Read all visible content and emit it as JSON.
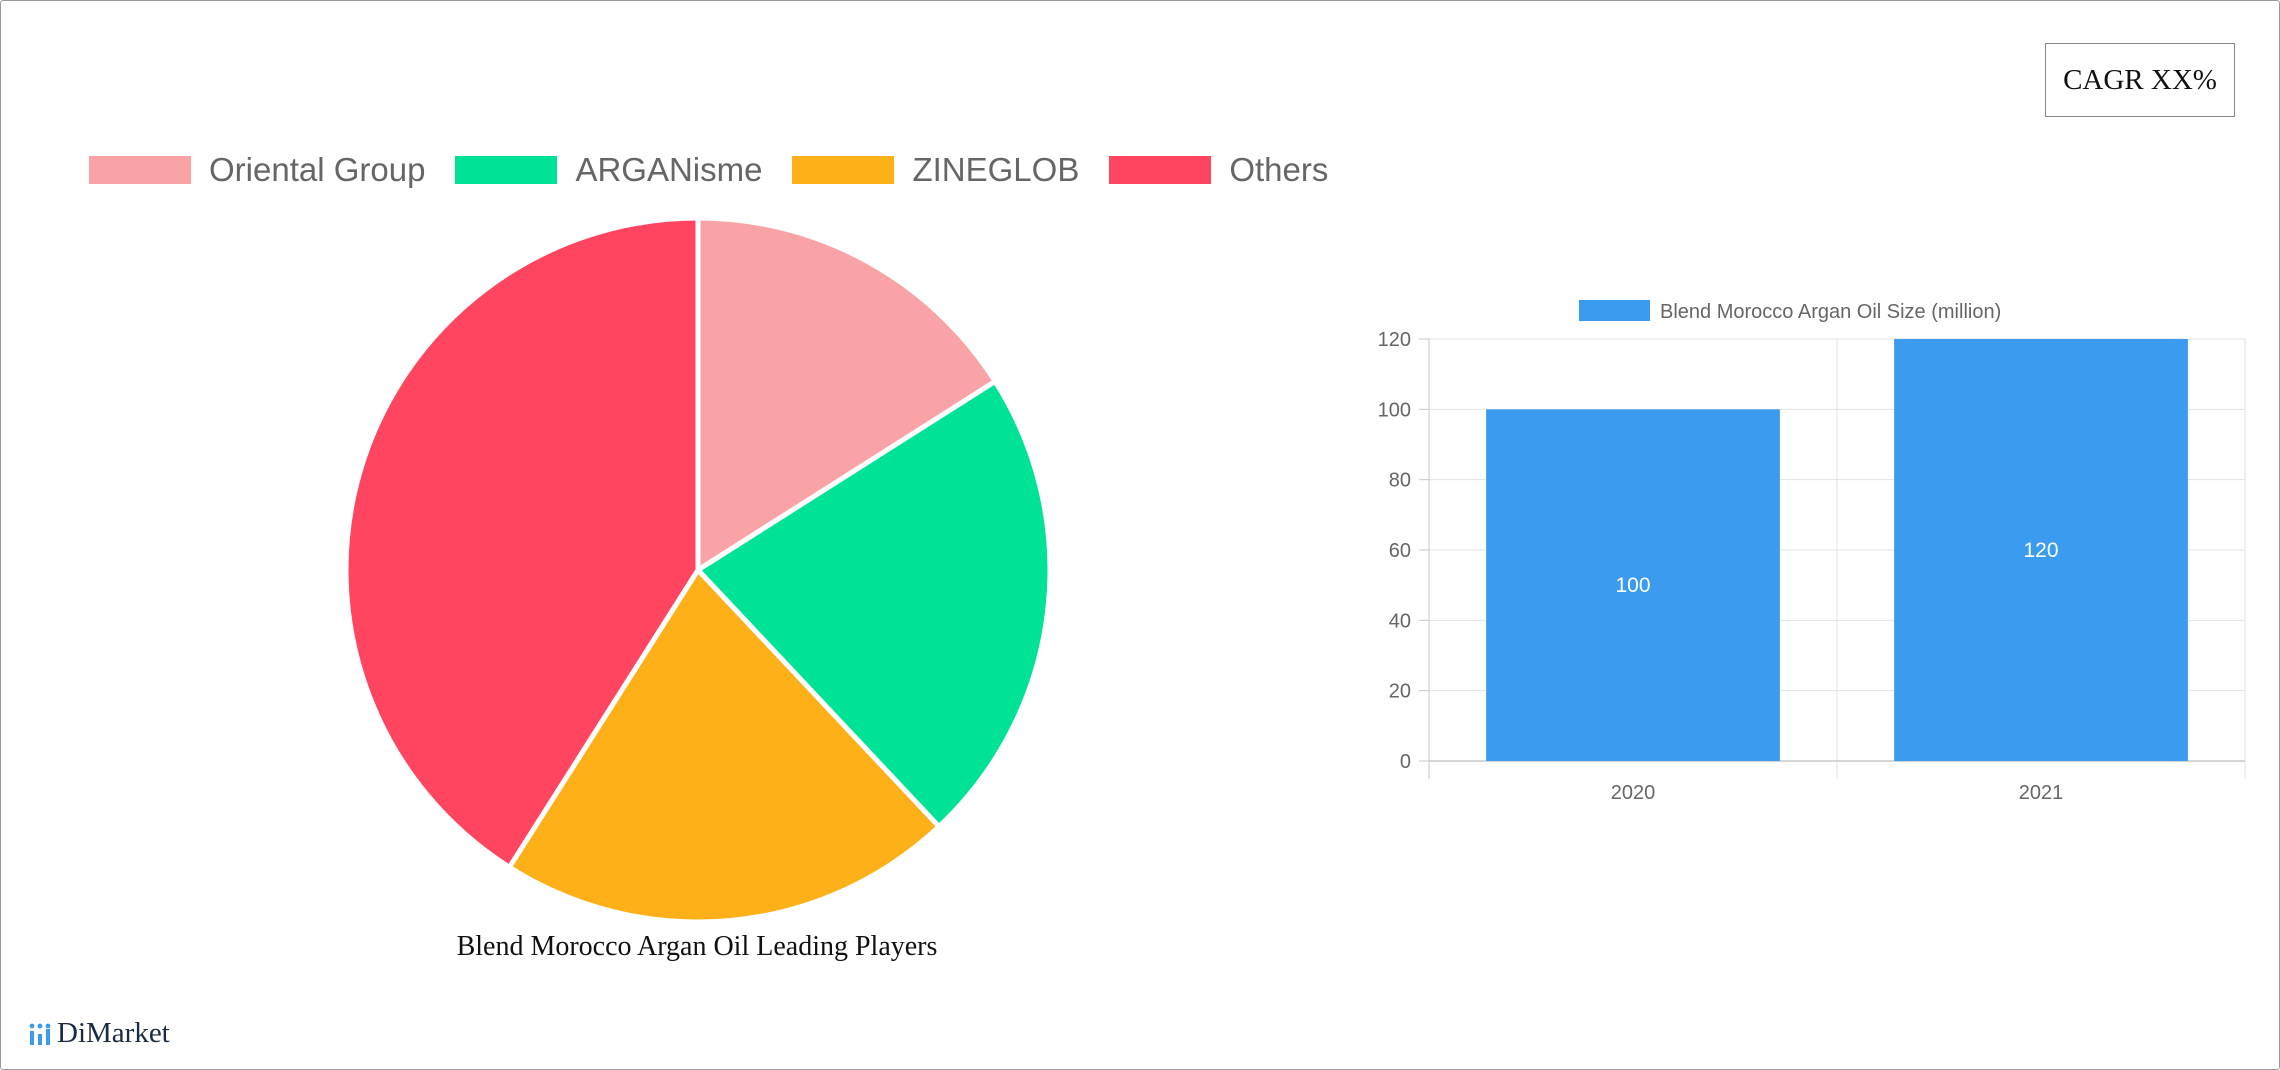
{
  "cagr_label": "CAGR XX%",
  "brand": {
    "name": "DiMarket"
  },
  "colors": {
    "oriental": "#f9a3a6",
    "arganisme": "#00e396",
    "zineglob": "#feb019",
    "others": "#ff4560",
    "bar": "#3a9bef"
  },
  "chart_data": [
    {
      "type": "pie",
      "title": "Blend Morocco Argan Oil Leading Players",
      "legend_position": "top",
      "slices": [
        {
          "label": "Oriental Group",
          "value": 16,
          "color": "#f9a3a6"
        },
        {
          "label": "ARGANisme",
          "value": 22,
          "color": "#00e396"
        },
        {
          "label": "ZINEGLOB",
          "value": 21,
          "color": "#feb019"
        },
        {
          "label": "Others",
          "value": 41,
          "color": "#ff4560"
        }
      ]
    },
    {
      "type": "bar",
      "title": "",
      "legend_position": "top",
      "categories": [
        "2020",
        "2021"
      ],
      "series": [
        {
          "name": "Blend Morocco Argan Oil Size (million)",
          "values": [
            100,
            120
          ],
          "color": "#3a9bef"
        }
      ],
      "data_labels": [
        "100",
        "120"
      ],
      "ylim": [
        0,
        120
      ],
      "yticks": [
        0,
        20,
        40,
        60,
        80,
        100,
        120
      ],
      "grid": true,
      "xlabel": "",
      "ylabel": ""
    }
  ]
}
